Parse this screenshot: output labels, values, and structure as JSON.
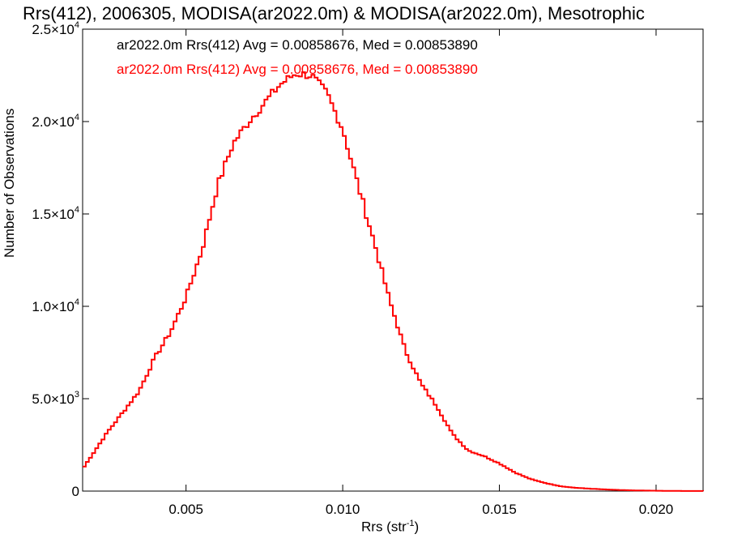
{
  "chart_data": {
    "type": "line",
    "title": "Rrs(412), 2006305, MODISA(ar2022.0m) & MODISA(ar2022.0m), Mesotrophic",
    "xlabel_main": "Rrs (str",
    "xlabel_sup": "-1",
    "xlabel_tail": ")",
    "ylabel": "Number of Observations",
    "xlim": [
      0.0017,
      0.0215
    ],
    "ylim": [
      0,
      25000
    ],
    "x_ticks": [
      {
        "value": 0.005,
        "label": "0.005"
      },
      {
        "value": 0.01,
        "label": "0.010"
      },
      {
        "value": 0.015,
        "label": "0.015"
      },
      {
        "value": 0.02,
        "label": "0.020"
      }
    ],
    "y_ticks": [
      {
        "value": 0,
        "mant": "0",
        "exp": ""
      },
      {
        "value": 5000,
        "mant": "5.0×10",
        "exp": "3"
      },
      {
        "value": 10000,
        "mant": "1.0×10",
        "exp": "4"
      },
      {
        "value": 15000,
        "mant": "1.5×10",
        "exp": "4"
      },
      {
        "value": 20000,
        "mant": "2.0×10",
        "exp": "4"
      },
      {
        "value": 25000,
        "mant": "2.5×10",
        "exp": "4"
      }
    ],
    "legend_position": "top-left",
    "legend": [
      {
        "text": "ar2022.0m Rrs(412) Avg = 0.00858676, Med = 0.00853890",
        "color": "#000000"
      },
      {
        "text": "ar2022.0m Rrs(412) Avg = 0.00858676, Med = 0.00853890",
        "color": "#ff0000"
      }
    ],
    "series": [
      {
        "color": "#ff0000",
        "x": [
          0.0017,
          0.0025,
          0.003,
          0.0035,
          0.004,
          0.0045,
          0.005,
          0.0055,
          0.006,
          0.0065,
          0.007,
          0.0075,
          0.008,
          0.0085,
          0.009,
          0.0095,
          0.01,
          0.0105,
          0.011,
          0.0115,
          0.012,
          0.0125,
          0.013,
          0.0135,
          0.014,
          0.0145,
          0.015,
          0.0155,
          0.016,
          0.0165,
          0.017,
          0.0175,
          0.018,
          0.0185,
          0.019,
          0.0195,
          0.02,
          0.0205,
          0.021,
          0.0215
        ],
        "y": [
          1200,
          3200,
          4300,
          5400,
          7200,
          8600,
          10500,
          13000,
          16500,
          18800,
          20000,
          21000,
          22000,
          22600,
          22500,
          21500,
          19600,
          16500,
          13500,
          10300,
          7600,
          5800,
          4600,
          3100,
          2200,
          1900,
          1500,
          1000,
          650,
          420,
          250,
          170,
          120,
          80,
          50,
          30,
          20,
          10,
          5,
          2
        ]
      }
    ]
  }
}
